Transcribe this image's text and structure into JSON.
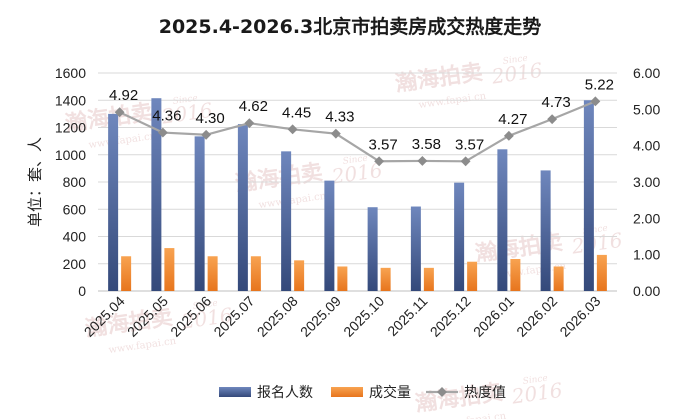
{
  "chart_data": {
    "type": "bar",
    "title": "2025.4-2026.3北京市拍卖房成交热度走势",
    "ylabel": "单位：套、人",
    "categories": [
      "2025.04",
      "2025.05",
      "2025.06",
      "2025.07",
      "2025.08",
      "2025.09",
      "2025.10",
      "2025.11",
      "2025.12",
      "2026.01",
      "2026.02",
      "2026.03"
    ],
    "ylim": [
      0,
      1600
    ],
    "yticks": [
      "0",
      "200",
      "400",
      "600",
      "800",
      "1000",
      "1200",
      "1400",
      "1600"
    ],
    "y2lim": [
      0,
      6
    ],
    "y2ticks": [
      "0.00",
      "1.00",
      "2.00",
      "3.00",
      "4.00",
      "5.00",
      "6.00"
    ],
    "series": [
      {
        "name": "报名人数",
        "type": "bar",
        "color": "#4a6394",
        "values": [
          1300,
          1415,
          1135,
          1225,
          1025,
          810,
          615,
          620,
          795,
          1040,
          885,
          1400
        ]
      },
      {
        "name": "成交量",
        "type": "bar",
        "color": "#f08a34",
        "values": [
          255,
          315,
          255,
          255,
          225,
          180,
          170,
          170,
          215,
          235,
          180,
          265
        ]
      },
      {
        "name": "热度值",
        "type": "line",
        "axis": "right",
        "color": "#9a9a9a",
        "values": [
          4.92,
          4.36,
          4.3,
          4.62,
          4.45,
          4.33,
          3.57,
          3.58,
          3.57,
          4.27,
          4.73,
          5.22
        ]
      }
    ],
    "data_labels": [
      "4.92",
      "4.36",
      "4.30",
      "4.62",
      "4.45",
      "4.33",
      "3.57",
      "3.58",
      "3.57",
      "4.27",
      "4.73",
      "5.22"
    ],
    "legend": {
      "position": "bottom",
      "entries": [
        "报名人数",
        "成交量",
        "热度值"
      ]
    },
    "grid": true
  },
  "watermark": {
    "brand": "瀚海拍卖",
    "since": "Since",
    "year": "2016",
    "url": "www.fapai.cn"
  }
}
